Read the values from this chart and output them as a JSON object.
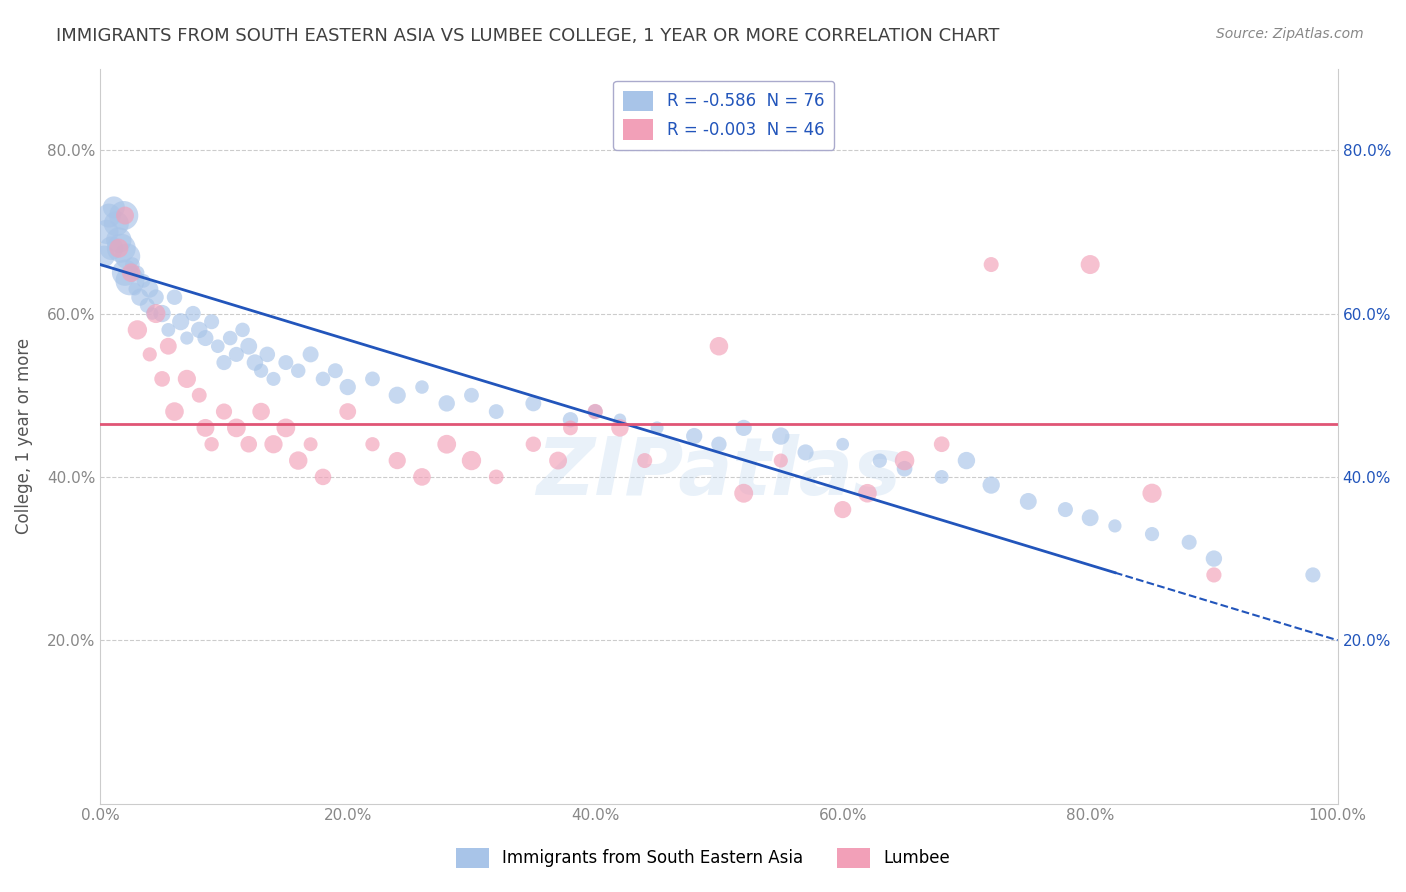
{
  "title": "IMMIGRANTS FROM SOUTH EASTERN ASIA VS LUMBEE COLLEGE, 1 YEAR OR MORE CORRELATION CHART",
  "source": "Source: ZipAtlas.com",
  "ylabel": "College, 1 year or more",
  "blue_label": "Immigrants from South Eastern Asia",
  "pink_label": "Lumbee",
  "blue_R": -0.586,
  "blue_N": 76,
  "pink_R": -0.003,
  "pink_N": 46,
  "blue_color": "#a8c4e8",
  "pink_color": "#f2a0b8",
  "blue_line_color": "#2255bb",
  "pink_line_color": "#e05575",
  "watermark": "ZIPatlas",
  "background_color": "#ffffff",
  "grid_color": "#cccccc",
  "title_color": "#404040",
  "blue_scatter": [
    [
      0.3,
      67
    ],
    [
      0.5,
      70
    ],
    [
      0.7,
      72
    ],
    [
      0.9,
      68
    ],
    [
      1.1,
      73
    ],
    [
      1.3,
      71
    ],
    [
      1.5,
      69
    ],
    [
      1.7,
      68
    ],
    [
      1.9,
      72
    ],
    [
      2.0,
      65
    ],
    [
      2.2,
      67
    ],
    [
      2.4,
      64
    ],
    [
      2.6,
      66
    ],
    [
      2.8,
      63
    ],
    [
      3.0,
      65
    ],
    [
      3.2,
      62
    ],
    [
      3.5,
      64
    ],
    [
      3.8,
      61
    ],
    [
      4.0,
      63
    ],
    [
      4.2,
      60
    ],
    [
      4.5,
      62
    ],
    [
      5.0,
      60
    ],
    [
      5.5,
      58
    ],
    [
      6.0,
      62
    ],
    [
      6.5,
      59
    ],
    [
      7.0,
      57
    ],
    [
      7.5,
      60
    ],
    [
      8.0,
      58
    ],
    [
      8.5,
      57
    ],
    [
      9.0,
      59
    ],
    [
      9.5,
      56
    ],
    [
      10.0,
      54
    ],
    [
      10.5,
      57
    ],
    [
      11.0,
      55
    ],
    [
      11.5,
      58
    ],
    [
      12.0,
      56
    ],
    [
      12.5,
      54
    ],
    [
      13.0,
      53
    ],
    [
      13.5,
      55
    ],
    [
      14.0,
      52
    ],
    [
      15.0,
      54
    ],
    [
      16.0,
      53
    ],
    [
      17.0,
      55
    ],
    [
      18.0,
      52
    ],
    [
      19.0,
      53
    ],
    [
      20.0,
      51
    ],
    [
      22.0,
      52
    ],
    [
      24.0,
      50
    ],
    [
      26.0,
      51
    ],
    [
      28.0,
      49
    ],
    [
      30.0,
      50
    ],
    [
      32.0,
      48
    ],
    [
      35.0,
      49
    ],
    [
      38.0,
      47
    ],
    [
      40.0,
      48
    ],
    [
      42.0,
      47
    ],
    [
      45.0,
      46
    ],
    [
      48.0,
      45
    ],
    [
      50.0,
      44
    ],
    [
      52.0,
      46
    ],
    [
      55.0,
      45
    ],
    [
      57.0,
      43
    ],
    [
      60.0,
      44
    ],
    [
      63.0,
      42
    ],
    [
      65.0,
      41
    ],
    [
      68.0,
      40
    ],
    [
      70.0,
      42
    ],
    [
      72.0,
      39
    ],
    [
      75.0,
      37
    ],
    [
      78.0,
      36
    ],
    [
      80.0,
      35
    ],
    [
      82.0,
      34
    ],
    [
      85.0,
      33
    ],
    [
      88.0,
      32
    ],
    [
      90.0,
      30
    ],
    [
      98.0,
      28
    ]
  ],
  "pink_scatter": [
    [
      1.5,
      68
    ],
    [
      2.0,
      72
    ],
    [
      2.5,
      65
    ],
    [
      3.0,
      58
    ],
    [
      4.0,
      55
    ],
    [
      4.5,
      60
    ],
    [
      5.0,
      52
    ],
    [
      5.5,
      56
    ],
    [
      6.0,
      48
    ],
    [
      7.0,
      52
    ],
    [
      8.0,
      50
    ],
    [
      8.5,
      46
    ],
    [
      9.0,
      44
    ],
    [
      10.0,
      48
    ],
    [
      11.0,
      46
    ],
    [
      12.0,
      44
    ],
    [
      13.0,
      48
    ],
    [
      14.0,
      44
    ],
    [
      15.0,
      46
    ],
    [
      16.0,
      42
    ],
    [
      17.0,
      44
    ],
    [
      18.0,
      40
    ],
    [
      20.0,
      48
    ],
    [
      22.0,
      44
    ],
    [
      24.0,
      42
    ],
    [
      26.0,
      40
    ],
    [
      28.0,
      44
    ],
    [
      30.0,
      42
    ],
    [
      32.0,
      40
    ],
    [
      35.0,
      44
    ],
    [
      37.0,
      42
    ],
    [
      38.0,
      46
    ],
    [
      40.0,
      48
    ],
    [
      42.0,
      46
    ],
    [
      44.0,
      42
    ],
    [
      50.0,
      56
    ],
    [
      52.0,
      38
    ],
    [
      55.0,
      42
    ],
    [
      60.0,
      36
    ],
    [
      62.0,
      38
    ],
    [
      65.0,
      42
    ],
    [
      68.0,
      44
    ],
    [
      72.0,
      66
    ],
    [
      80.0,
      66
    ],
    [
      85.0,
      38
    ],
    [
      90.0,
      28
    ]
  ],
  "pink_line_y": 46.5,
  "blue_line_start_y": 66.0,
  "blue_line_end_y": 20.0,
  "blue_line_solid_end_x": 82,
  "xlim": [
    0,
    100
  ],
  "ylim": [
    0,
    90
  ],
  "ytick_values": [
    20,
    40,
    60,
    80
  ],
  "ytick_labels_left": [
    "20.0%",
    "40.0%",
    "60.0%",
    "80.0%"
  ],
  "ytick_labels_right": [
    "20.0%",
    "40.0%",
    "60.0%",
    "80.0%"
  ],
  "xtick_values": [
    0,
    20,
    40,
    60,
    80,
    100
  ],
  "xtick_labels": [
    "0.0%",
    "20.0%",
    "40.0%",
    "60.0%",
    "80.0%",
    "100.0%"
  ]
}
